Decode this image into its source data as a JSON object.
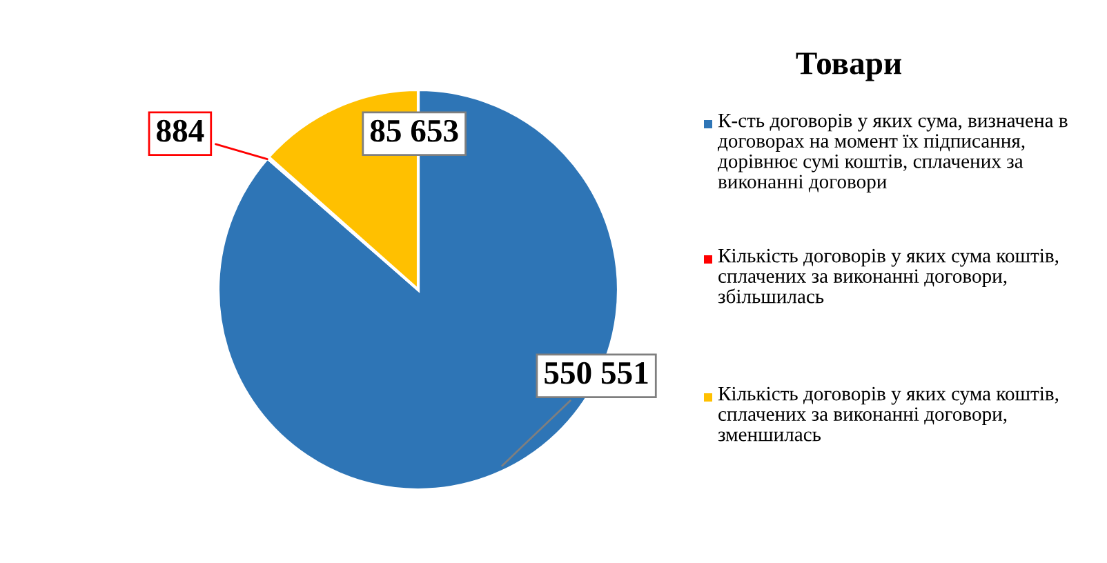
{
  "chart_data": {
    "type": "pie",
    "title": "Товари",
    "categories": [
      "К-сть договорів у яких сума, визначена в договорах на момент їх підписання, дорівнює сумі коштів, сплачених за виконанні договори",
      "Кількість договорів у яких сума коштів, сплачених за виконанні договори, збільшилась",
      "Кількість договорів у яких сума коштів, сплачених за виконанні договори, зменшилась"
    ],
    "values": [
      550551,
      884,
      85653
    ],
    "value_labels": [
      "550 551",
      "884",
      "85 653"
    ],
    "colors": [
      "#2e75b6",
      "#ff0000",
      "#ffc000"
    ],
    "legend": "right"
  }
}
